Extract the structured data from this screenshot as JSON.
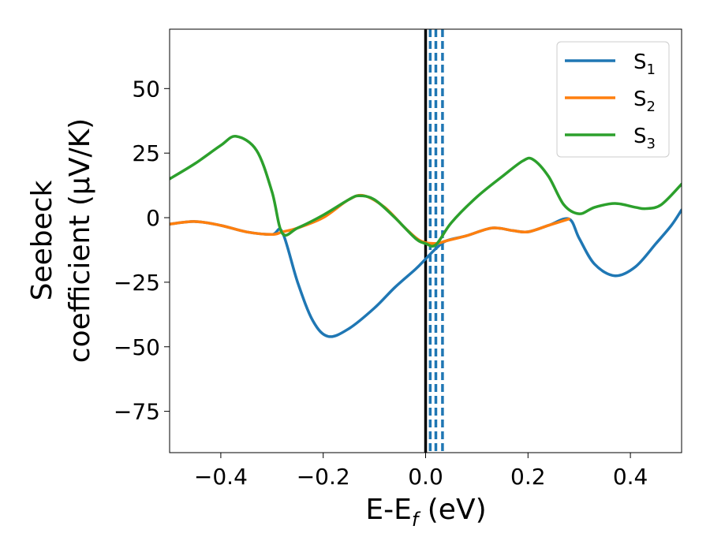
{
  "chart_data": {
    "type": "line",
    "xlabel": {
      "main": "E-E",
      "sub": "f",
      "unit": " (eV)"
    },
    "ylabel": {
      "line1": "Seebeck",
      "line2": "coefficient  (μV/K)"
    },
    "xlim": [
      -0.5,
      0.5
    ],
    "ylim": [
      -91,
      73
    ],
    "x_ticks": [
      -0.4,
      -0.2,
      0.0,
      0.2,
      0.4
    ],
    "x_tick_labels": [
      "−0.4",
      "−0.2",
      "0.0",
      "0.2",
      "0.4"
    ],
    "y_ticks": [
      50,
      25,
      0,
      -25,
      -50,
      -75
    ],
    "y_tick_labels": [
      "50",
      "25",
      "0",
      "−25",
      "−50",
      "−75"
    ],
    "legend_position": "top-right",
    "vertical_lines": [
      {
        "x": 0.0,
        "style": "solid",
        "color": "#000000"
      },
      {
        "x": 0.009,
        "style": "dashed",
        "color": "#1f77b4"
      },
      {
        "x": 0.02,
        "style": "dashed",
        "color": "#1f77b4"
      },
      {
        "x": 0.033,
        "style": "dashed",
        "color": "#1f77b4"
      }
    ],
    "series": [
      {
        "name": "S",
        "subscript": "1",
        "color": "#1f77b4",
        "points": [
          [
            -0.5,
            -2.5
          ],
          [
            -0.45,
            -1.5
          ],
          [
            -0.4,
            -3
          ],
          [
            -0.35,
            -5.5
          ],
          [
            -0.3,
            -6.5
          ],
          [
            -0.28,
            -5.5
          ],
          [
            -0.25,
            -25
          ],
          [
            -0.22,
            -40
          ],
          [
            -0.19,
            -46
          ],
          [
            -0.15,
            -43
          ],
          [
            -0.1,
            -35
          ],
          [
            -0.06,
            -27
          ],
          [
            -0.02,
            -20
          ],
          [
            0.0,
            -16
          ],
          [
            0.02,
            -12
          ],
          [
            0.04,
            -9
          ],
          [
            0.08,
            -7
          ],
          [
            0.13,
            -4
          ],
          [
            0.17,
            -5
          ],
          [
            0.2,
            -5.5
          ],
          [
            0.24,
            -3
          ],
          [
            0.28,
            -0.5
          ],
          [
            0.3,
            -8
          ],
          [
            0.33,
            -18
          ],
          [
            0.37,
            -22.5
          ],
          [
            0.41,
            -19
          ],
          [
            0.45,
            -10
          ],
          [
            0.48,
            -3
          ],
          [
            0.5,
            3
          ]
        ]
      },
      {
        "name": "S",
        "subscript": "2",
        "color": "#ff7f0e",
        "points": [
          [
            -0.5,
            -2.5
          ],
          [
            -0.45,
            -1.5
          ],
          [
            -0.4,
            -3
          ],
          [
            -0.35,
            -5.5
          ],
          [
            -0.3,
            -6.5
          ],
          [
            -0.28,
            -5.5
          ],
          [
            -0.25,
            -4
          ],
          [
            -0.2,
            0
          ],
          [
            -0.15,
            7
          ],
          [
            -0.12,
            8.5
          ],
          [
            -0.08,
            4
          ],
          [
            -0.04,
            -4
          ],
          [
            -0.01,
            -9
          ],
          [
            0.02,
            -10
          ],
          [
            0.04,
            -9
          ],
          [
            0.08,
            -7
          ],
          [
            0.13,
            -4
          ],
          [
            0.17,
            -5
          ],
          [
            0.2,
            -5.5
          ],
          [
            0.24,
            -3
          ],
          [
            0.28,
            -0.5
          ]
        ]
      },
      {
        "name": "S",
        "subscript": "3",
        "color": "#2ca02c",
        "points": [
          [
            -0.5,
            15
          ],
          [
            -0.45,
            21
          ],
          [
            -0.4,
            28
          ],
          [
            -0.37,
            31.5
          ],
          [
            -0.33,
            26
          ],
          [
            -0.3,
            10
          ],
          [
            -0.28,
            -6
          ],
          [
            -0.25,
            -4
          ],
          [
            -0.2,
            1
          ],
          [
            -0.15,
            7
          ],
          [
            -0.13,
            8.5
          ],
          [
            -0.1,
            7
          ],
          [
            -0.06,
            0
          ],
          [
            -0.02,
            -8
          ],
          [
            0.0,
            -10
          ],
          [
            0.02,
            -10.5
          ],
          [
            0.05,
            -2
          ],
          [
            0.1,
            8
          ],
          [
            0.15,
            16
          ],
          [
            0.19,
            22
          ],
          [
            0.21,
            22.5
          ],
          [
            0.24,
            16
          ],
          [
            0.27,
            5
          ],
          [
            0.3,
            1.5
          ],
          [
            0.33,
            4
          ],
          [
            0.37,
            5.5
          ],
          [
            0.41,
            4
          ],
          [
            0.43,
            3.5
          ],
          [
            0.46,
            5
          ],
          [
            0.5,
            13
          ]
        ]
      }
    ]
  }
}
